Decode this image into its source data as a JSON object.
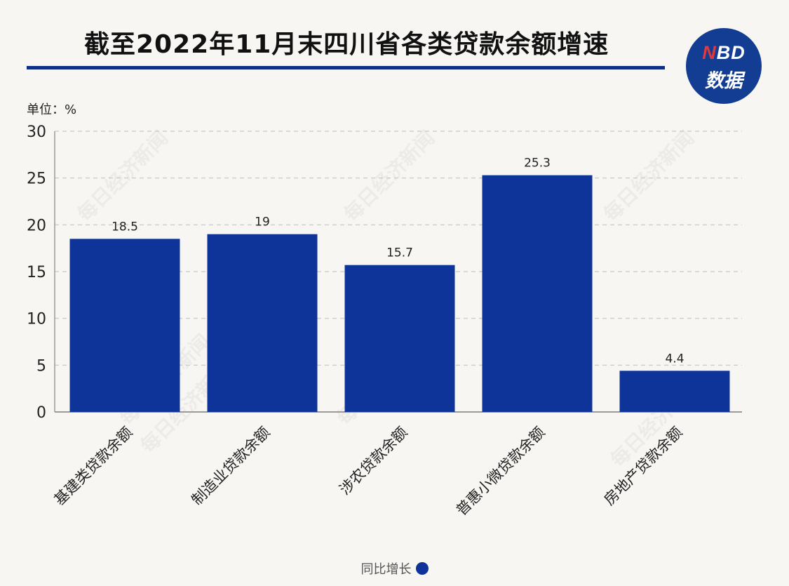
{
  "header": {
    "title": "截至2022年11月末四川省各类贷款余额增速",
    "logo_top": "NBD",
    "logo_bottom": "数据",
    "watermark": "每日经济新闻"
  },
  "unit_label": "单位：%",
  "colors": {
    "bar": "#0f3499",
    "title_rule": "#0d2f86",
    "logo_bg": "#123d92",
    "grid": "#cfcfcf",
    "axis": "#9a9a9a"
  },
  "chart_data": {
    "type": "bar",
    "title": "截至2022年11月末四川省各类贷款余额增速",
    "xlabel": "",
    "ylabel": "单位：%",
    "categories": [
      "基建类贷款余额",
      "制造业贷款余额",
      "涉农贷款余额",
      "普惠小微贷款余额",
      "房地产贷款余额"
    ],
    "series": [
      {
        "name": "同比增长",
        "values": [
          18.5,
          19,
          15.7,
          25.3,
          4.4
        ]
      }
    ],
    "data_labels": [
      "18.5",
      "19",
      "15.7",
      "25.3",
      "4.4"
    ],
    "ylim": [
      0,
      30
    ],
    "yticks": [
      0,
      5,
      10,
      15,
      20,
      25,
      30
    ],
    "grid": true,
    "legend": "bottom-center"
  }
}
